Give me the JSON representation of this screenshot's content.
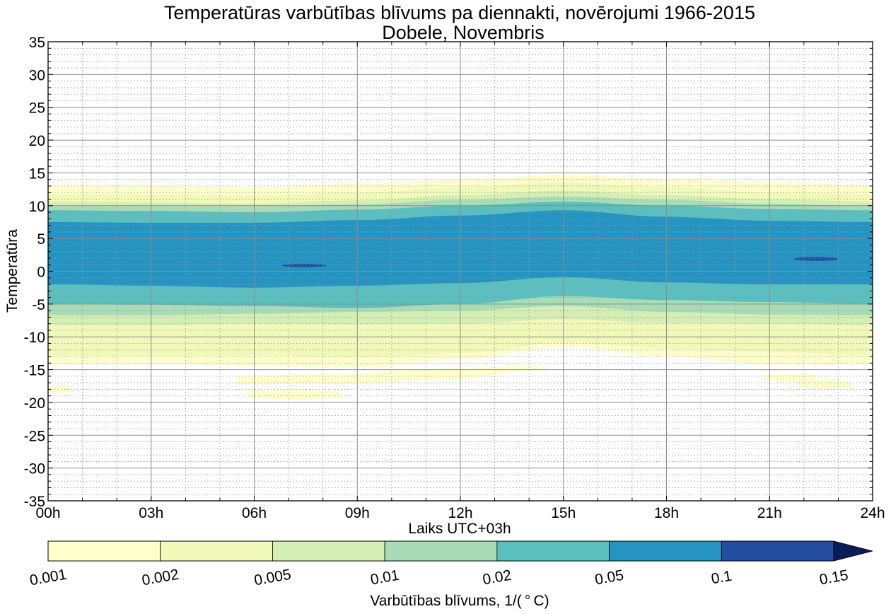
{
  "chart_data": {
    "type": "filled-contour",
    "title_line1": "Temperatūras varbūtības blīvums pa diennakti, novērojumi 1966-2015",
    "title_line2": "Dobele, Novembris",
    "xlabel": "Laiks UTC+03h",
    "ylabel": "Temperatūra",
    "x_ticks": [
      "00h",
      "03h",
      "06h",
      "09h",
      "12h",
      "15h",
      "18h",
      "21h",
      "24h"
    ],
    "xlim_hours": [
      0,
      24
    ],
    "y_ticks": [
      "35",
      "30",
      "25",
      "20",
      "15",
      "10",
      "5",
      "0",
      "-5",
      "-10",
      "-15",
      "-20",
      "-25",
      "-30",
      "-35"
    ],
    "ylim": [
      -35,
      35
    ],
    "grid": "major solid, minor dotted (1h, 1°C)",
    "colorbar": {
      "label": "Varbūtības blīvums, 1/($^\\circ$C)",
      "label_display": "Varbūtības blīvums, 1/( ° C)",
      "levels": [
        "0.001",
        "0.002",
        "0.005",
        "0.01",
        "0.02",
        "0.05",
        "0.1",
        "0.15"
      ],
      "colors": [
        "#ffffcc",
        "#f0f9b8",
        "#d4eeb3",
        "#a8dcb7",
        "#5bbfc0",
        "#2594c3",
        "#234da0",
        "#081d58"
      ],
      "extend": "max"
    },
    "bands": [
      {
        "level": "0.001",
        "color": "#ffffcc",
        "t": [
          0,
          3,
          6,
          9,
          12,
          15,
          18,
          21,
          24
        ],
        "upper": [
          13.1,
          13.0,
          12.8,
          13.3,
          13.9,
          14.7,
          14.0,
          13.6,
          13.1
        ],
        "lower": [
          -14.2,
          -14.0,
          -14.4,
          -14.6,
          -13.5,
          -11.5,
          -13.0,
          -14.2,
          -14.2
        ]
      },
      {
        "level": "0.002",
        "color": "#f0f9b8",
        "t": [
          0,
          3,
          6,
          9,
          12,
          15,
          18,
          21,
          24
        ],
        "upper": [
          11.8,
          11.8,
          11.6,
          12.0,
          12.8,
          13.5,
          12.8,
          12.0,
          11.8
        ],
        "lower": [
          -12.8,
          -12.9,
          -12.8,
          -13.1,
          -12.5,
          -10.9,
          -11.8,
          -12.3,
          -12.8
        ]
      },
      {
        "level": "0.005",
        "color": "#d4eeb3",
        "t": [
          0,
          3,
          6,
          9,
          12,
          15,
          18,
          21,
          24
        ],
        "upper": [
          10.6,
          10.5,
          10.3,
          10.8,
          11.6,
          12.3,
          11.6,
          11.0,
          10.6
        ],
        "lower": [
          -8.2,
          -8.2,
          -8.0,
          -8.1,
          -8.0,
          -7.3,
          -7.9,
          -8.0,
          -8.2
        ]
      },
      {
        "level": "0.01",
        "color": "#a8dcb7",
        "t": [
          0,
          3,
          6,
          9,
          12,
          15,
          18,
          21,
          24
        ],
        "upper": [
          9.9,
          9.9,
          9.9,
          10.2,
          10.9,
          11.4,
          10.9,
          10.3,
          9.9
        ],
        "lower": [
          -6.7,
          -6.7,
          -6.5,
          -6.2,
          -6.0,
          -5.3,
          -6.2,
          -6.6,
          -6.7
        ]
      },
      {
        "level": "0.02",
        "color": "#5bbfc0",
        "t": [
          0,
          3,
          6,
          9,
          12,
          15,
          18,
          21,
          24
        ],
        "upper": [
          9.3,
          9.2,
          9.0,
          9.4,
          10.0,
          10.6,
          10.0,
          9.5,
          9.3
        ],
        "lower": [
          -5.0,
          -5.1,
          -5.3,
          -5.6,
          -5.0,
          -3.8,
          -4.4,
          -4.7,
          -5.0
        ]
      },
      {
        "level": "0.05",
        "color": "#2594c3",
        "t": [
          0,
          3,
          6,
          9,
          12,
          15,
          18,
          21,
          24
        ],
        "upper": [
          7.5,
          7.4,
          7.4,
          7.8,
          8.5,
          9.3,
          8.3,
          7.7,
          7.5
        ],
        "lower": [
          -2.0,
          -2.2,
          -2.5,
          -2.2,
          -1.8,
          -0.9,
          -1.7,
          -2.0,
          -2.0
        ]
      }
    ],
    "spots": [
      {
        "level": "0.1",
        "color": "#234da0",
        "t_start": 6.8,
        "t_end": 8.1,
        "y_center": 0.9,
        "half_height": 0.25
      },
      {
        "level": "0.1",
        "color": "#234da0",
        "t_start": 21.7,
        "t_end": 23.0,
        "y_center": 1.9,
        "half_height": 0.3
      }
    ],
    "lower_islands": [
      {
        "level": "0.001",
        "color": "#ffffcc",
        "t": [
          5.8,
          7.0,
          8.5
        ],
        "y_top": [
          -18.3,
          -18.0,
          -18.3
        ],
        "y_bot": [
          -19.3,
          -19.6,
          -19.3
        ]
      },
      {
        "level": "0.001",
        "color": "#ffffcc",
        "t": [
          5.5,
          8.5,
          11.5,
          14.5
        ],
        "y_top": [
          -16.0,
          -15.6,
          -14.8,
          -14.5
        ],
        "y_bot": [
          -17.2,
          -17.2,
          -16.5,
          -15.0
        ]
      },
      {
        "level": "0.001",
        "color": "#ffffcc",
        "t": [
          20.8,
          21.6,
          22.4
        ],
        "y_top": [
          -15.8,
          -15.6,
          -15.8
        ],
        "y_bot": [
          -16.6,
          -16.8,
          -16.6
        ]
      },
      {
        "level": "0.001",
        "color": "#ffffcc",
        "t": [
          21.8,
          22.7,
          23.4
        ],
        "y_top": [
          -16.8,
          -16.5,
          -16.8
        ],
        "y_bot": [
          -17.7,
          -17.9,
          -17.7
        ]
      },
      {
        "level": "0.001",
        "color": "#ffffcc",
        "t": [
          -0.1,
          0.3,
          0.7
        ],
        "y_top": [
          -17.6,
          -17.5,
          -17.6
        ],
        "y_bot": [
          -18.4,
          -18.5,
          -18.4
        ]
      }
    ]
  }
}
